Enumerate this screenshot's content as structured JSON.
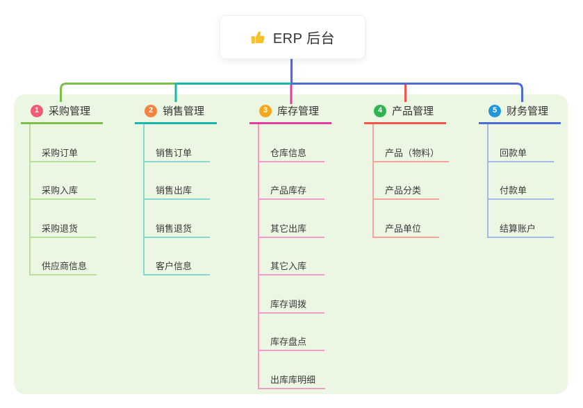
{
  "root": {
    "title": "ERP 后台",
    "icon": "thumbs-up-icon",
    "icon_color": "#F8C12C"
  },
  "colors": {
    "panel_bg": "#EBF7E3",
    "root_stem": "#5B68C8",
    "text": "#333333"
  },
  "branches": [
    {
      "index": "1",
      "title": "采购管理",
      "badge_color": "#F05B72",
      "line_color": "#7DBE4A",
      "light_color": "#B7DF9C",
      "children": [
        "采购订单",
        "采购入库",
        "采购退货",
        "供应商信息"
      ]
    },
    {
      "index": "2",
      "title": "销售管理",
      "badge_color": "#F6823F",
      "line_color": "#16B8AC",
      "light_color": "#85D8D0",
      "children": [
        "销售订单",
        "销售出库",
        "销售退货",
        "客户信息"
      ]
    },
    {
      "index": "3",
      "title": "库存管理",
      "badge_color": "#F5A81C",
      "line_color": "#E13C9E",
      "light_color": "#F29BCB",
      "children": [
        "仓库信息",
        "产品库存",
        "其它出库",
        "其它入库",
        "库存调拨",
        "库存盘点",
        "出库库明细"
      ]
    },
    {
      "index": "4",
      "title": "产品管理",
      "badge_color": "#2FB44F",
      "line_color": "#F4544C",
      "light_color": "#F8A29B",
      "children": [
        "产品（物料）",
        "产品分类",
        "产品单位"
      ]
    },
    {
      "index": "5",
      "title": "财务管理",
      "badge_color": "#2097DB",
      "line_color": "#4C6BD4",
      "light_color": "#A5B8E6",
      "children": [
        "回款单",
        "付款单",
        "结算账户"
      ]
    }
  ]
}
